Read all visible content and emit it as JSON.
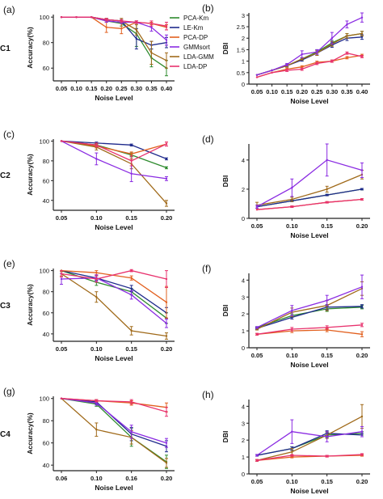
{
  "figure": {
    "row_labels": [
      "C1",
      "C2",
      "C3",
      "C4"
    ],
    "legend": [
      {
        "name": "PCA-Km",
        "color": "#2e8b2e"
      },
      {
        "name": "LE-Km",
        "color": "#1f2a8c"
      },
      {
        "name": "PCA-DP",
        "color": "#e2601f"
      },
      {
        "name": "GMMsort",
        "color": "#8a2be2"
      },
      {
        "name": "LDA-GMM",
        "color": "#a06a1a"
      },
      {
        "name": "LDA-DP",
        "color": "#e8326e"
      }
    ]
  },
  "chart_data": [
    {
      "panel": "(a)",
      "type": "line",
      "xlabel": "Noise Level",
      "ylabel": "Accuracy(%)",
      "x": [
        0.05,
        0.1,
        0.15,
        0.2,
        0.25,
        0.3,
        0.35,
        0.4
      ],
      "xticks": [
        "0.05",
        "0.10",
        "0.15",
        "0.20",
        "0.25",
        "0.30",
        "0.35",
        "0.40"
      ],
      "ylim": [
        50,
        102
      ],
      "yticks": [
        60,
        80,
        100
      ],
      "series": [
        {
          "name": "PCA-Km",
          "values": [
            100,
            100,
            100,
            97,
            95,
            87,
            68,
            60
          ],
          "err": [
            0,
            0,
            0,
            1,
            2,
            10,
            7,
            6
          ]
        },
        {
          "name": "LE-Km",
          "values": [
            100,
            100,
            100,
            98,
            97,
            83,
            78,
            80
          ],
          "err": [
            0,
            0,
            0,
            1,
            1,
            8,
            3,
            4
          ]
        },
        {
          "name": "PCA-DP",
          "values": [
            100,
            100,
            100,
            92,
            91,
            96,
            95,
            92
          ],
          "err": [
            0,
            0,
            0,
            4,
            4,
            1,
            1,
            2
          ]
        },
        {
          "name": "GMMsort",
          "values": [
            100,
            100,
            100,
            97,
            96,
            96,
            92,
            82
          ],
          "err": [
            0,
            0,
            0,
            1,
            1,
            1,
            3,
            4
          ]
        },
        {
          "name": "LDA-GMM",
          "values": [
            100,
            100,
            100,
            98,
            97,
            90,
            72,
            66
          ],
          "err": [
            0,
            0,
            0,
            1,
            2,
            4,
            9,
            6
          ]
        },
        {
          "name": "LDA-DP",
          "values": [
            100,
            100,
            100,
            98,
            97,
            96,
            95,
            93
          ],
          "err": [
            0,
            0,
            0,
            1,
            1,
            1,
            2,
            3
          ]
        }
      ]
    },
    {
      "panel": "(b)",
      "type": "line",
      "xlabel": "Noise Level",
      "ylabel": "DBI",
      "x": [
        0.05,
        0.1,
        0.15,
        0.2,
        0.25,
        0.3,
        0.35,
        0.4
      ],
      "xticks": [
        "0.05",
        "0.10",
        "0.15",
        "0.20",
        "0.25",
        "0.30",
        "0.35",
        "0.40"
      ],
      "ylim": [
        0,
        3.1
      ],
      "yticks": [
        0,
        0.5,
        1.0,
        1.5,
        2.0,
        2.5,
        3.0
      ],
      "series": [
        {
          "name": "PCA-Km",
          "values": [
            0.4,
            0.6,
            0.8,
            1.1,
            1.4,
            1.8,
            2.1,
            2.2
          ],
          "err": [
            0,
            0,
            0.05,
            0.05,
            0.1,
            0.1,
            0.1,
            0.1
          ]
        },
        {
          "name": "LE-Km",
          "values": [
            0.4,
            0.6,
            0.8,
            1.05,
            1.35,
            1.7,
            2.0,
            2.05
          ],
          "err": [
            0,
            0,
            0.05,
            0.05,
            0.1,
            0.1,
            0.1,
            0.1
          ]
        },
        {
          "name": "PCA-DP",
          "values": [
            0.3,
            0.5,
            0.65,
            0.75,
            0.95,
            1.0,
            1.15,
            1.25
          ],
          "err": [
            0,
            0,
            0.05,
            0.05,
            0.05,
            0.05,
            0.05,
            0.05
          ]
        },
        {
          "name": "GMMsort",
          "values": [
            0.4,
            0.6,
            0.85,
            1.3,
            1.4,
            2.0,
            2.6,
            2.9
          ],
          "err": [
            0,
            0,
            0.05,
            0.15,
            0.1,
            0.25,
            0.15,
            0.2
          ]
        },
        {
          "name": "LDA-GMM",
          "values": [
            0.4,
            0.6,
            0.8,
            1.1,
            1.35,
            1.75,
            2.1,
            2.2
          ],
          "err": [
            0,
            0,
            0.05,
            0.05,
            0.1,
            0.1,
            0.1,
            0.1
          ]
        },
        {
          "name": "LDA-DP",
          "values": [
            0.3,
            0.5,
            0.6,
            0.65,
            0.9,
            1.0,
            1.35,
            1.2
          ],
          "err": [
            0,
            0,
            0.05,
            0.05,
            0.05,
            0.05,
            0.05,
            0.05
          ]
        }
      ]
    },
    {
      "panel": "(c)",
      "type": "line",
      "xlabel": "Noise Level",
      "ylabel": "Accuracy(%)",
      "x": [
        0.05,
        0.1,
        0.15,
        0.2
      ],
      "xticks": [
        "0.05",
        "0.10",
        "0.15",
        "0.20"
      ],
      "ylim": [
        30,
        102
      ],
      "yticks": [
        40,
        60,
        80,
        100
      ],
      "series": [
        {
          "name": "PCA-Km",
          "values": [
            100,
            96,
            86,
            73
          ],
          "err": [
            0,
            1,
            2,
            1
          ]
        },
        {
          "name": "LE-Km",
          "values": [
            100,
            98,
            96,
            82
          ],
          "err": [
            0,
            1,
            1,
            1
          ]
        },
        {
          "name": "PCA-DP",
          "values": [
            100,
            95,
            87,
            97
          ],
          "err": [
            0,
            2,
            2,
            2
          ]
        },
        {
          "name": "GMMsort",
          "values": [
            100,
            82,
            67,
            62
          ],
          "err": [
            0,
            6,
            8,
            2
          ]
        },
        {
          "name": "LDA-GMM",
          "values": [
            100,
            94,
            77,
            37
          ],
          "err": [
            0,
            3,
            5,
            3
          ]
        },
        {
          "name": "LDA-DP",
          "values": [
            100,
            96,
            80,
            97
          ],
          "err": [
            0,
            2,
            5,
            2
          ]
        }
      ]
    },
    {
      "panel": "(d)",
      "type": "line",
      "xlabel": "Noise Level",
      "ylabel": "DBI",
      "x": [
        0.05,
        0.1,
        0.15,
        0.2
      ],
      "xticks": [
        "0.05",
        "0.10",
        "0.15",
        "0.20"
      ],
      "ylim": [
        0,
        5.1
      ],
      "yticks": [
        0,
        2.0,
        4.0
      ],
      "series": [
        {
          "name": "PCA-Km",
          "values": [
            0.8,
            1.2,
            1.6,
            2.0
          ],
          "err": [
            0,
            0.05,
            0.05,
            0.05
          ]
        },
        {
          "name": "LE-Km",
          "values": [
            0.8,
            1.2,
            1.6,
            2.0
          ],
          "err": [
            0,
            0.05,
            0.05,
            0.05
          ]
        },
        {
          "name": "PCA-DP",
          "values": [
            0.6,
            0.8,
            1.1,
            1.3
          ],
          "err": [
            0,
            0.05,
            0.05,
            0.05
          ]
        },
        {
          "name": "GMMsort",
          "values": [
            0.8,
            2.1,
            4.0,
            3.3
          ],
          "err": [
            0.1,
            0.6,
            1.1,
            0.5
          ]
        },
        {
          "name": "LDA-GMM",
          "values": [
            0.9,
            1.3,
            2.0,
            3.0
          ],
          "err": [
            0.2,
            0.15,
            0.2,
            0.3
          ]
        },
        {
          "name": "LDA-DP",
          "values": [
            0.6,
            0.8,
            1.1,
            1.3
          ],
          "err": [
            0,
            0.05,
            0.05,
            0.05
          ]
        }
      ]
    },
    {
      "panel": "(e)",
      "type": "line",
      "xlabel": "Noise Level",
      "ylabel": "Accuracy(%)",
      "x": [
        0.05,
        0.1,
        0.15,
        0.2
      ],
      "xticks": [
        "0.05",
        "0.10",
        "0.15",
        "0.20"
      ],
      "ylim": [
        33,
        102
      ],
      "yticks": [
        40,
        60,
        80,
        100
      ],
      "series": [
        {
          "name": "PCA-Km",
          "values": [
            100,
            89,
            80,
            55
          ],
          "err": [
            0,
            3,
            3,
            5
          ]
        },
        {
          "name": "LE-Km",
          "values": [
            100,
            93,
            83,
            60
          ],
          "err": [
            0,
            2,
            3,
            5
          ]
        },
        {
          "name": "PCA-DP",
          "values": [
            100,
            98,
            93,
            70
          ],
          "err": [
            0,
            2,
            2,
            15
          ]
        },
        {
          "name": "GMMsort",
          "values": [
            92,
            93,
            77,
            50
          ],
          "err": [
            5,
            3,
            4,
            4
          ]
        },
        {
          "name": "LDA-GMM",
          "values": [
            97,
            75,
            43,
            38
          ],
          "err": [
            2,
            5,
            4,
            3
          ]
        },
        {
          "name": "LDA-DP",
          "values": [
            97,
            92,
            100,
            92
          ],
          "err": [
            3,
            3,
            1,
            8
          ]
        }
      ]
    },
    {
      "panel": "(f)",
      "type": "line",
      "xlabel": "Noise Level",
      "ylabel": "DBI",
      "x": [
        0.05,
        0.1,
        0.15,
        0.2
      ],
      "xticks": [
        "0.05",
        "0.10",
        "0.15",
        "0.20"
      ],
      "ylim": [
        0,
        4.4
      ],
      "yticks": [
        0.0,
        1.0,
        2.0,
        3.0,
        4.0
      ],
      "series": [
        {
          "name": "PCA-Km",
          "values": [
            1.2,
            1.9,
            2.3,
            2.4
          ],
          "err": [
            0.05,
            0.1,
            0.15,
            0.1
          ]
        },
        {
          "name": "LE-Km",
          "values": [
            1.15,
            1.8,
            2.4,
            2.45
          ],
          "err": [
            0.05,
            0.1,
            0.15,
            0.1
          ]
        },
        {
          "name": "PCA-DP",
          "values": [
            0.8,
            1.0,
            1.05,
            0.8
          ],
          "err": [
            0.05,
            0.1,
            0.1,
            0.15
          ]
        },
        {
          "name": "GMMsort",
          "values": [
            1.2,
            2.2,
            2.8,
            3.6
          ],
          "err": [
            0.05,
            0.3,
            0.3,
            0.7
          ]
        },
        {
          "name": "LDA-GMM",
          "values": [
            1.1,
            2.1,
            2.5,
            3.5
          ],
          "err": [
            0.05,
            0.25,
            0.3,
            0.4
          ]
        },
        {
          "name": "LDA-DP",
          "values": [
            0.8,
            1.1,
            1.2,
            1.35
          ],
          "err": [
            0.05,
            0.1,
            0.1,
            0.1
          ]
        }
      ]
    },
    {
      "panel": "(g)",
      "type": "line",
      "xlabel": "Noise Level",
      "ylabel": "Accuracy(%)",
      "x": [
        0.06,
        0.1,
        0.16,
        0.2
      ],
      "xticks": [
        "0.06",
        "0.10",
        "0.16",
        "0.20"
      ],
      "ylim": [
        35,
        102
      ],
      "yticks": [
        40,
        60,
        80,
        100
      ],
      "series": [
        {
          "name": "PCA-Km",
          "values": [
            100,
            95,
            65,
            43
          ],
          "err": [
            0,
            2,
            8,
            6
          ]
        },
        {
          "name": "LE-Km",
          "values": [
            100,
            97,
            68,
            57
          ],
          "err": [
            0,
            2,
            6,
            5
          ]
        },
        {
          "name": "PCA-DP",
          "values": [
            100,
            98,
            96,
            92
          ],
          "err": [
            0,
            1,
            2,
            4
          ]
        },
        {
          "name": "GMMsort",
          "values": [
            100,
            96,
            70,
            60
          ],
          "err": [
            0,
            2,
            6,
            4
          ]
        },
        {
          "name": "LDA-GMM",
          "values": [
            100,
            72,
            65,
            42
          ],
          "err": [
            0,
            6,
            6,
            4
          ]
        },
        {
          "name": "LDA-DP",
          "values": [
            100,
            98,
            97,
            88
          ],
          "err": [
            0,
            1,
            2,
            4
          ]
        }
      ]
    },
    {
      "panel": "(h)",
      "type": "line",
      "xlabel": "Noise Level",
      "ylabel": "DBI",
      "x": [
        0.05,
        0.1,
        0.15,
        0.2
      ],
      "xticks": [
        "0.05",
        "0.10",
        "0.15",
        "0.20"
      ],
      "ylim": [
        0,
        4.4
      ],
      "yticks": [
        0.0,
        1.0,
        2.0,
        3.0,
        4.0
      ],
      "series": [
        {
          "name": "PCA-Km",
          "values": [
            1.1,
            1.5,
            2.3,
            2.4
          ],
          "err": [
            0.05,
            0.1,
            0.15,
            0.1
          ]
        },
        {
          "name": "LE-Km",
          "values": [
            1.1,
            1.5,
            2.4,
            2.3
          ],
          "err": [
            0.05,
            0.1,
            0.15,
            0.1
          ]
        },
        {
          "name": "PCA-DP",
          "values": [
            0.8,
            1.0,
            1.05,
            1.1
          ],
          "err": [
            0.05,
            0.05,
            0.05,
            0.05
          ]
        },
        {
          "name": "GMMsort",
          "values": [
            1.1,
            2.5,
            2.2,
            2.5
          ],
          "err": [
            0.05,
            0.7,
            0.3,
            0.3
          ]
        },
        {
          "name": "LDA-GMM",
          "values": [
            0.8,
            1.3,
            2.3,
            3.4
          ],
          "err": [
            0.05,
            0.2,
            0.2,
            0.7
          ]
        },
        {
          "name": "LDA-DP",
          "values": [
            0.8,
            1.1,
            1.05,
            1.15
          ],
          "err": [
            0.05,
            0.05,
            0.05,
            0.05
          ]
        }
      ]
    }
  ]
}
